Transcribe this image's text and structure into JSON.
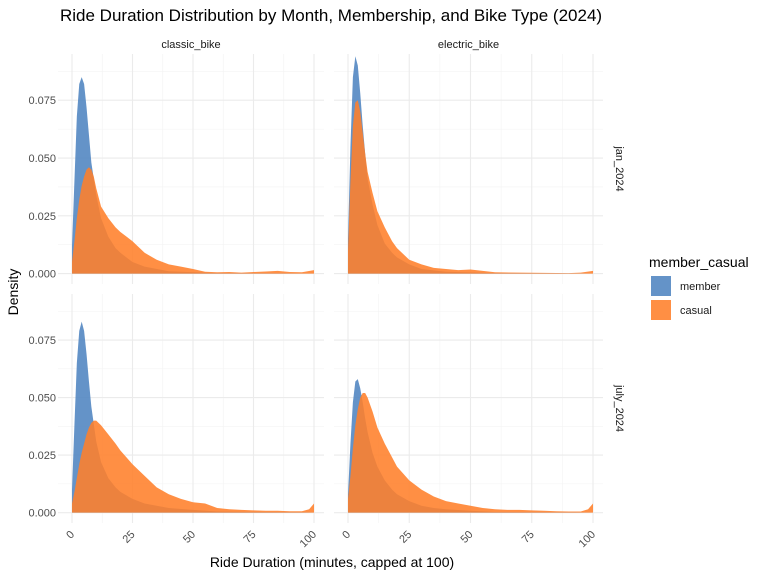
{
  "chart_data": {
    "type": "area",
    "subtype": "density",
    "title": "Ride Duration Distribution by Month, Membership, and Bike Type (2024)",
    "xlabel": "Ride Duration (minutes, capped at 100)",
    "ylabel": "Density",
    "xlim": [
      0,
      100
    ],
    "ylim": [
      0,
      0.095
    ],
    "x_ticks": [
      0,
      25,
      50,
      75,
      100
    ],
    "x_tick_labels": [
      "0",
      "25",
      "50",
      "75",
      "100"
    ],
    "y_ticks": [
      0,
      0.025,
      0.05,
      0.075
    ],
    "y_tick_labels": [
      "0.000",
      "0.025",
      "0.050",
      "0.075"
    ],
    "grid": true,
    "legend_position": "right",
    "legend": {
      "title": "member_casual",
      "entries": [
        {
          "name": "member",
          "color": "#4f84c0"
        },
        {
          "name": "casual",
          "color": "#ff7f2a"
        }
      ]
    },
    "column_facets": [
      "classic_bike",
      "electric_bike"
    ],
    "row_facets": [
      "jan_2024",
      "july_2024"
    ],
    "panels": [
      {
        "row": "jan_2024",
        "col": "classic_bike",
        "series": [
          {
            "name": "member",
            "x": [
              0,
              1,
              2,
              3,
              4,
              5,
              6,
              7,
              8,
              10,
              12,
              15,
              18,
              20,
              25,
              30,
              40,
              60,
              100
            ],
            "y": [
              0.012,
              0.04,
              0.068,
              0.082,
              0.085,
              0.082,
              0.072,
              0.06,
              0.048,
              0.034,
              0.024,
              0.016,
              0.011,
              0.009,
              0.005,
              0.003,
              0.001,
              0.0002,
              0.0
            ]
          },
          {
            "name": "casual",
            "x": [
              0,
              1,
              2,
              3,
              4,
              5,
              6,
              7,
              8,
              9,
              10,
              12,
              15,
              18,
              20,
              25,
              30,
              35,
              40,
              45,
              50,
              55,
              60,
              65,
              70,
              75,
              80,
              85,
              90,
              95,
              100
            ],
            "y": [
              0.005,
              0.014,
              0.024,
              0.032,
              0.038,
              0.042,
              0.045,
              0.046,
              0.045,
              0.042,
              0.037,
              0.029,
              0.024,
              0.02,
              0.018,
              0.014,
              0.009,
              0.006,
              0.004,
              0.003,
              0.002,
              0.0008,
              0.0006,
              0.0007,
              0.0004,
              0.0007,
              0.0009,
              0.0012,
              0.0007,
              0.0006,
              0.0015
            ]
          }
        ]
      },
      {
        "row": "jan_2024",
        "col": "electric_bike",
        "series": [
          {
            "name": "member",
            "x": [
              0,
              1,
              2,
              3,
              4,
              5,
              6,
              7,
              8,
              10,
              12,
              15,
              18,
              20,
              25,
              30,
              40,
              60,
              100
            ],
            "y": [
              0.015,
              0.055,
              0.085,
              0.094,
              0.09,
              0.078,
              0.064,
              0.052,
              0.041,
              0.03,
              0.021,
              0.013,
              0.009,
              0.007,
              0.004,
              0.002,
              0.0008,
              0.0002,
              0.0
            ]
          },
          {
            "name": "casual",
            "x": [
              0,
              1,
              2,
              3,
              4,
              5,
              6,
              7,
              8,
              10,
              12,
              15,
              18,
              20,
              25,
              30,
              35,
              40,
              45,
              50,
              55,
              60,
              70,
              80,
              90,
              95,
              100
            ],
            "y": [
              0.01,
              0.04,
              0.064,
              0.074,
              0.075,
              0.07,
              0.061,
              0.052,
              0.044,
              0.035,
              0.027,
              0.02,
              0.014,
              0.011,
              0.006,
              0.004,
              0.0025,
              0.002,
              0.0015,
              0.0018,
              0.0012,
              0.0006,
              0.0004,
              0.0003,
              0.0002,
              0.0004,
              0.0012
            ]
          }
        ]
      },
      {
        "row": "july_2024",
        "col": "classic_bike",
        "series": [
          {
            "name": "member",
            "x": [
              0,
              1,
              2,
              3,
              4,
              5,
              6,
              7,
              8,
              10,
              12,
              15,
              18,
              20,
              25,
              30,
              35,
              40,
              50,
              60,
              100
            ],
            "y": [
              0.01,
              0.038,
              0.065,
              0.079,
              0.083,
              0.079,
              0.069,
              0.057,
              0.046,
              0.031,
              0.022,
              0.015,
              0.011,
              0.009,
              0.006,
              0.004,
              0.003,
              0.002,
              0.0012,
              0.0005,
              0.0
            ]
          },
          {
            "name": "casual",
            "x": [
              0,
              1,
              2,
              3,
              4,
              5,
              6,
              7,
              8,
              9,
              10,
              12,
              15,
              18,
              20,
              25,
              30,
              35,
              40,
              45,
              50,
              55,
              60,
              65,
              70,
              75,
              80,
              85,
              90,
              95,
              98,
              100
            ],
            "y": [
              0.004,
              0.009,
              0.015,
              0.021,
              0.026,
              0.03,
              0.034,
              0.037,
              0.039,
              0.04,
              0.04,
              0.038,
              0.034,
              0.03,
              0.027,
              0.021,
              0.016,
              0.011,
              0.008,
              0.006,
              0.0045,
              0.004,
              0.002,
              0.0015,
              0.0012,
              0.001,
              0.0008,
              0.0008,
              0.0006,
              0.0006,
              0.0015,
              0.004
            ]
          }
        ]
      },
      {
        "row": "july_2024",
        "col": "electric_bike",
        "series": [
          {
            "name": "member",
            "x": [
              0,
              1,
              2,
              3,
              4,
              5,
              6,
              7,
              8,
              10,
              12,
              15,
              18,
              20,
              25,
              30,
              35,
              40,
              50,
              60,
              100
            ],
            "y": [
              0.008,
              0.03,
              0.048,
              0.057,
              0.058,
              0.054,
              0.048,
              0.041,
              0.035,
              0.026,
              0.02,
              0.014,
              0.01,
              0.008,
              0.005,
              0.003,
              0.002,
              0.0015,
              0.0008,
              0.0003,
              0.0
            ]
          },
          {
            "name": "casual",
            "x": [
              0,
              1,
              2,
              3,
              4,
              5,
              6,
              7,
              8,
              9,
              10,
              12,
              15,
              18,
              20,
              25,
              30,
              35,
              40,
              45,
              50,
              55,
              60,
              65,
              70,
              75,
              80,
              85,
              90,
              95,
              98,
              100
            ],
            "y": [
              0.006,
              0.016,
              0.028,
              0.038,
              0.045,
              0.05,
              0.052,
              0.052,
              0.05,
              0.047,
              0.044,
              0.037,
              0.03,
              0.024,
              0.02,
              0.014,
              0.01,
              0.007,
              0.005,
              0.004,
              0.003,
              0.002,
              0.0015,
              0.0012,
              0.0012,
              0.001,
              0.0008,
              0.0006,
              0.0005,
              0.0005,
              0.0015,
              0.004
            ]
          }
        ]
      }
    ]
  }
}
